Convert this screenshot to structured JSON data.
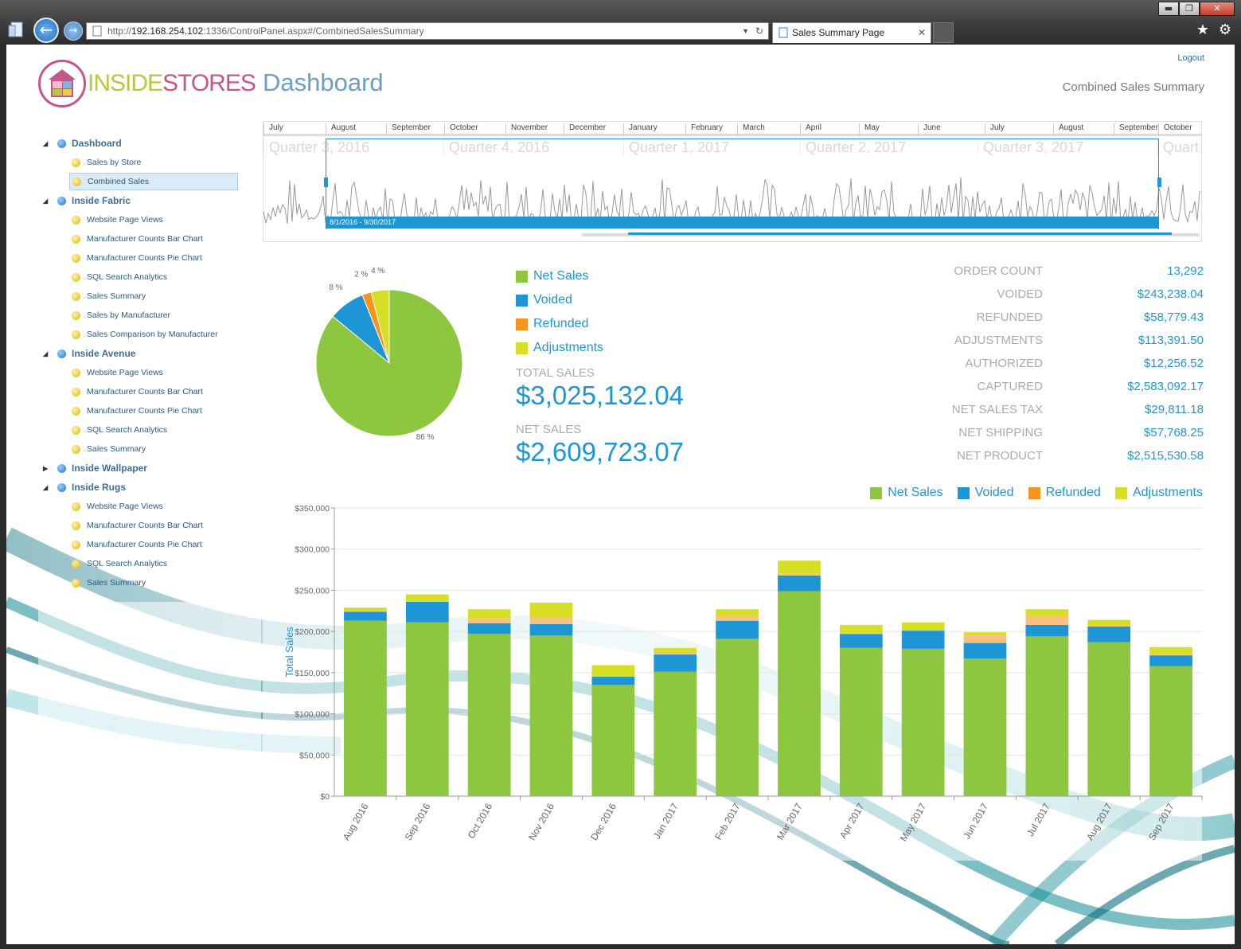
{
  "browser": {
    "url_prefix": "http://",
    "url_host": "192.168.254.102",
    "url_rest": ":1336/ControlPanel.aspx#/CombinedSalesSummary",
    "tab_title": "Sales Summary Page",
    "tab_close": "✕",
    "min": "▬",
    "max": "❐",
    "close": "✕"
  },
  "header": {
    "logo_part1": "INSIDE",
    "logo_part2": "STORES",
    "title": "Dashboard",
    "logout": "Logout",
    "subtitle": "Combined Sales Summary"
  },
  "sidebar": {
    "groups": [
      {
        "label": "Dashboard",
        "expanded": true,
        "items": [
          "Sales by Store",
          "Combined Sales"
        ],
        "selected": "Combined Sales"
      },
      {
        "label": "Inside Fabric",
        "expanded": true,
        "items": [
          "Website Page Views",
          "Manufacturer Counts Bar Chart",
          "Manufacturer Counts Pie Chart",
          "SQL Search Analytics",
          "Sales Summary",
          "Sales by Manufacturer",
          "Sales Comparison by Manufacturer"
        ]
      },
      {
        "label": "Inside Avenue",
        "expanded": true,
        "items": [
          "Website Page Views",
          "Manufacturer Counts Bar Chart",
          "Manufacturer Counts Pie Chart",
          "SQL Search Analytics",
          "Sales Summary"
        ]
      },
      {
        "label": "Inside Wallpaper",
        "expanded": false,
        "items": []
      },
      {
        "label": "Inside Rugs",
        "expanded": true,
        "items": [
          "Website Page Views",
          "Manufacturer Counts Bar Chart",
          "Manufacturer Counts Pie Chart",
          "SQL Search Analytics",
          "Sales Summary"
        ]
      }
    ]
  },
  "navigator": {
    "months": [
      "July",
      "August",
      "September",
      "October",
      "November",
      "December",
      "January",
      "February",
      "March",
      "April",
      "May",
      "June",
      "July",
      "August",
      "September",
      "October"
    ],
    "quarters": [
      "Quarter 3, 2016",
      "Quarter 4, 2016",
      "Quarter 1, 2017",
      "Quarter 2, 2017",
      "Quarter 3, 2017",
      "Quart"
    ],
    "selection_label": "8/1/2016 - 9/30/2017"
  },
  "legend": [
    {
      "name": "Net Sales",
      "color": "#8dc63f"
    },
    {
      "name": "Voided",
      "color": "#1e96d6"
    },
    {
      "name": "Refunded",
      "color": "#f7941d"
    },
    {
      "name": "Adjustments",
      "color": "#d7df23"
    }
  ],
  "totals": {
    "total_sales_label": "TOTAL SALES",
    "total_sales": "$3,025,132.04",
    "net_sales_label": "NET SALES",
    "net_sales": "$2,609,723.07"
  },
  "stats": [
    {
      "label": "ORDER COUNT",
      "value": "13,292"
    },
    {
      "label": "VOIDED",
      "value": "$243,238.04"
    },
    {
      "label": "REFUNDED",
      "value": "$58,779.43"
    },
    {
      "label": "ADJUSTMENTS",
      "value": "$113,391.50"
    },
    {
      "label": "AUTHORIZED",
      "value": "$12,256.52"
    },
    {
      "label": "CAPTURED",
      "value": "$2,583,092.17"
    },
    {
      "label": "NET SALES TAX",
      "value": "$29,811.18"
    },
    {
      "label": "NET SHIPPING",
      "value": "$57,768.25"
    },
    {
      "label": "NET PRODUCT",
      "value": "$2,515,530.58"
    }
  ],
  "chart_data": [
    {
      "type": "pie",
      "slices": [
        {
          "name": "Net Sales",
          "value": 86,
          "label": "86 %"
        },
        {
          "name": "Voided",
          "value": 8,
          "label": "8 %"
        },
        {
          "name": "Refunded",
          "value": 2,
          "label": "2 %"
        },
        {
          "name": "Adjustments",
          "value": 4,
          "label": "4 %"
        }
      ]
    },
    {
      "type": "bar",
      "stacked": true,
      "ylabel": "Total Sales",
      "ylim": [
        0,
        350000
      ],
      "yticks": [
        "$0",
        "$50,000",
        "$100,000",
        "$150,000",
        "$200,000",
        "$250,000",
        "$300,000",
        "$350,000"
      ],
      "categories": [
        "Aug 2016",
        "Sep 2016",
        "Oct 2016",
        "Nov 2016",
        "Dec 2016",
        "Jan 2017",
        "Feb 2017",
        "Mar 2017",
        "Apr 2017",
        "May 2017",
        "Jun 2017",
        "Jul 2017",
        "Aug 2017",
        "Sep 2017"
      ],
      "series": [
        {
          "name": "Net Sales",
          "values": [
            213000,
            211000,
            197000,
            195000,
            135000,
            151000,
            191000,
            249000,
            180000,
            179000,
            167000,
            194000,
            187000,
            158000
          ]
        },
        {
          "name": "Voided",
          "values": [
            11000,
            25000,
            13000,
            14000,
            10000,
            21000,
            22000,
            19000,
            17000,
            22000,
            19000,
            14000,
            19000,
            13000
          ]
        },
        {
          "name": "Refunded",
          "values": [
            1000,
            1000,
            6000,
            8000,
            1000,
            2000,
            6000,
            2000,
            1000,
            1000,
            10000,
            11000,
            1000,
            1000
          ]
        },
        {
          "name": "Adjustments",
          "values": [
            4000,
            8000,
            11000,
            18000,
            13000,
            6000,
            8000,
            16000,
            10000,
            9000,
            3000,
            8000,
            7000,
            9000
          ]
        }
      ]
    }
  ]
}
